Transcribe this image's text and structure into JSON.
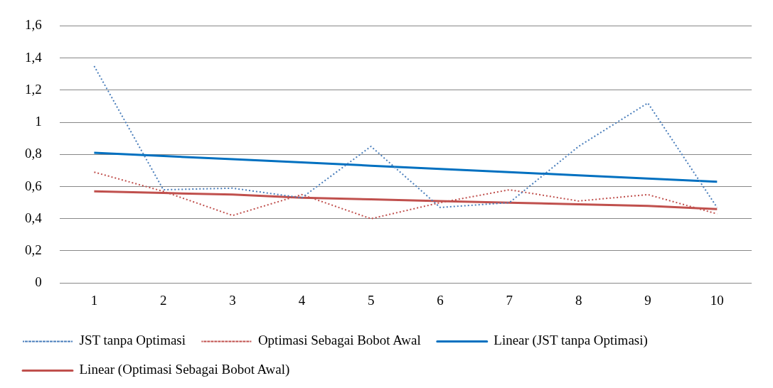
{
  "chart_data": {
    "type": "line",
    "categories": [
      "1",
      "2",
      "3",
      "4",
      "5",
      "6",
      "7",
      "8",
      "9",
      "10"
    ],
    "series": [
      {
        "name": "JST tanpa Optimasi",
        "color": "#4a7ebb",
        "line_style": "dotted",
        "values": [
          1.35,
          0.58,
          0.59,
          0.53,
          0.85,
          0.47,
          0.5,
          0.85,
          1.12,
          0.47
        ]
      },
      {
        "name": "Optimasi Sebagai Bobot Awal",
        "color": "#c0504d",
        "line_style": "dotted",
        "values": [
          0.69,
          0.57,
          0.42,
          0.55,
          0.4,
          0.5,
          0.58,
          0.51,
          0.55,
          0.43
        ]
      },
      {
        "name": "Linear (JST tanpa Optimasi)",
        "color": "#0070c0",
        "line_style": "solid",
        "values": [
          0.81,
          0.79,
          0.77,
          0.75,
          0.73,
          0.71,
          0.69,
          0.67,
          0.65,
          0.63
        ]
      },
      {
        "name": "Linear (Optimasi Sebagai Bobot Awal)",
        "color": "#c0504d",
        "line_style": "solid",
        "values": [
          0.57,
          0.56,
          0.55,
          0.53,
          0.52,
          0.51,
          0.5,
          0.49,
          0.48,
          0.46
        ]
      }
    ],
    "ylim": [
      0,
      1.6
    ],
    "yticks": [
      {
        "value": 0,
        "label": "0"
      },
      {
        "value": 0.2,
        "label": "0,2"
      },
      {
        "value": 0.4,
        "label": "0,4"
      },
      {
        "value": 0.6,
        "label": "0,6"
      },
      {
        "value": 0.8,
        "label": "0,8"
      },
      {
        "value": 1,
        "label": "1"
      },
      {
        "value": 1.2,
        "label": "1,2"
      },
      {
        "value": 1.4,
        "label": "1,4"
      },
      {
        "value": 1.6,
        "label": "1,6"
      }
    ],
    "grid": "y",
    "legend": "bottom",
    "marker": "none"
  }
}
